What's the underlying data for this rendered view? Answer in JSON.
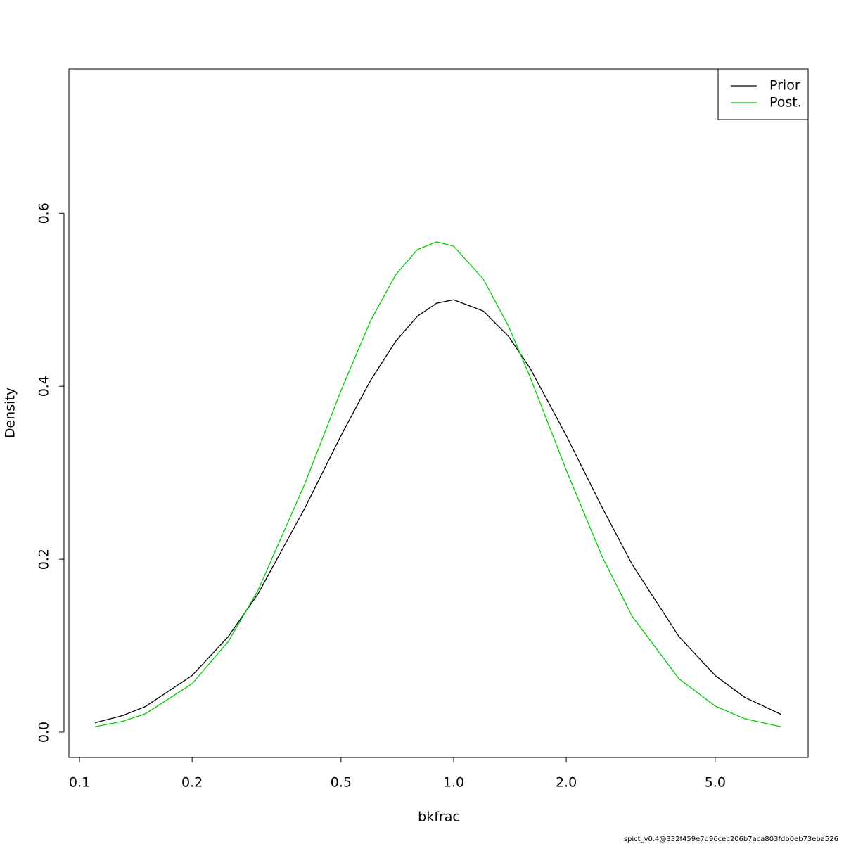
{
  "chart_data": {
    "type": "line",
    "xlabel": "bkfrac",
    "ylabel": "Density",
    "xlog": true,
    "x": [
      0.11,
      0.13,
      0.15,
      0.2,
      0.25,
      0.3,
      0.4,
      0.5,
      0.6,
      0.7,
      0.8,
      0.9,
      1.0,
      1.2,
      1.4,
      1.6,
      2.0,
      2.5,
      3,
      4,
      5,
      6,
      7.5
    ],
    "series": [
      {
        "name": "Prior",
        "color": "#000000",
        "values": [
          0.0109,
          0.019,
          0.0296,
          0.0655,
          0.1107,
          0.16,
          0.259,
          0.343,
          0.407,
          0.452,
          0.481,
          0.496,
          0.5,
          0.487,
          0.458,
          0.421,
          0.343,
          0.259,
          0.194,
          0.1107,
          0.0655,
          0.0402,
          0.0206
        ]
      },
      {
        "name": "Post.",
        "color": "#00cd00",
        "values": [
          0.0063,
          0.0124,
          0.0213,
          0.056,
          0.105,
          0.164,
          0.287,
          0.395,
          0.476,
          0.529,
          0.558,
          0.567,
          0.562,
          0.524,
          0.47,
          0.411,
          0.303,
          0.202,
          0.134,
          0.0618,
          0.0302,
          0.0155,
          0.0063
        ]
      }
    ],
    "xlim": [
      0.0937,
      8.86
    ],
    "ylim": [
      -0.0293,
      0.767
    ],
    "xticks": [
      0.1,
      0.2,
      0.5,
      {
        "value": 1,
        "label": "1.0"
      },
      {
        "value": 2,
        "label": "2.0"
      },
      {
        "value": 5,
        "label": "5.0"
      }
    ],
    "yticks": [
      {
        "value": 0,
        "label": "0.0"
      },
      0.2,
      0.4,
      0.6
    ],
    "legend": "topright",
    "footnote": "spict_v0.4@332f459e7d96cec206b7aca803fdb0eb73eba526"
  }
}
